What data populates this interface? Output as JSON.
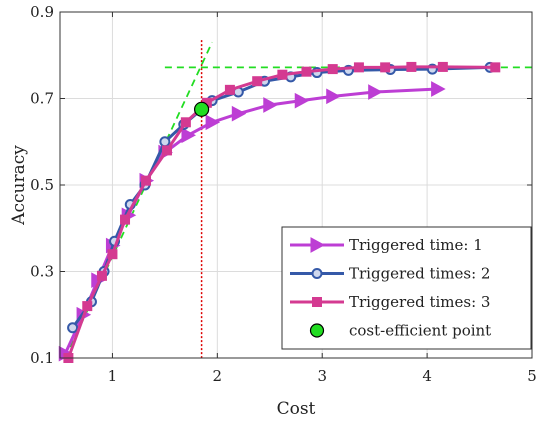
{
  "chart_data": {
    "type": "line",
    "title": "",
    "xlabel": "Cost",
    "ylabel": "Accuracy",
    "xlim": [
      0.5,
      5
    ],
    "ylim": [
      0.1,
      0.9
    ],
    "xticks": [
      1,
      2,
      3,
      4,
      5
    ],
    "yticks": [
      0.1,
      0.3,
      0.5,
      0.7,
      0.9
    ],
    "xtick_labels": [
      "1",
      "2",
      "3",
      "4",
      "5"
    ],
    "ytick_labels": [
      "0.1",
      "0.3",
      "0.5",
      "0.7",
      "0.9"
    ],
    "grid": true,
    "legend_position": "bottom-right",
    "series": [
      {
        "name": "Triggered time: 1",
        "color": "#bd3ed4",
        "marker": "triangle-right",
        "x": [
          0.55,
          0.72,
          0.86,
          1.0,
          1.15,
          1.32,
          1.5,
          1.72,
          1.95,
          2.2,
          2.5,
          2.8,
          3.1,
          3.5,
          4.1
        ],
        "y": [
          0.11,
          0.2,
          0.28,
          0.36,
          0.43,
          0.51,
          0.575,
          0.615,
          0.645,
          0.665,
          0.685,
          0.695,
          0.705,
          0.715,
          0.722
        ]
      },
      {
        "name": "Triggered times: 2",
        "color": "#3559a8",
        "marker": "circle",
        "x": [
          0.62,
          0.8,
          0.92,
          1.02,
          1.17,
          1.31,
          1.5,
          1.68,
          1.85,
          1.95,
          2.2,
          2.45,
          2.7,
          2.95,
          3.25,
          3.65,
          4.05,
          4.6
        ],
        "y": [
          0.17,
          0.23,
          0.3,
          0.37,
          0.455,
          0.5,
          0.6,
          0.64,
          0.675,
          0.695,
          0.715,
          0.74,
          0.75,
          0.76,
          0.765,
          0.767,
          0.768,
          0.772
        ]
      },
      {
        "name": "Triggered times: 3",
        "color": "#d43a91",
        "marker": "square",
        "x": [
          0.58,
          0.76,
          0.9,
          1.0,
          1.12,
          1.32,
          1.52,
          1.7,
          1.9,
          2.12,
          2.38,
          2.62,
          2.85,
          3.1,
          3.35,
          3.6,
          3.85,
          4.15,
          4.65
        ],
        "y": [
          0.1,
          0.22,
          0.29,
          0.34,
          0.42,
          0.51,
          0.58,
          0.645,
          0.69,
          0.72,
          0.74,
          0.755,
          0.762,
          0.768,
          0.772,
          0.772,
          0.773,
          0.773,
          0.772
        ]
      }
    ],
    "cost_efficient_point": {
      "name": "cost-efficient point",
      "x": 1.85,
      "y": 0.675,
      "color": "#22dd22"
    },
    "guide_lines": {
      "vertical_x": 1.85,
      "vertical_color": "#dd0000",
      "horizontal_y": 0.772,
      "horizontal_x_start": 1.5,
      "horizontal_color": "#22dd22",
      "diagonal": [
        [
          0.55,
          0.1
        ],
        [
          1.95,
          0.83
        ]
      ],
      "diagonal_color": "#22dd22"
    }
  }
}
